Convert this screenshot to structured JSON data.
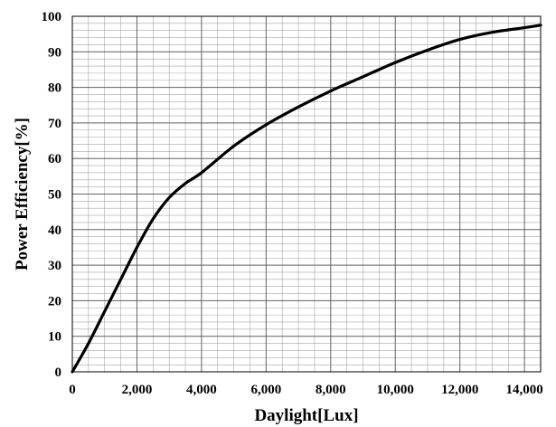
{
  "chart_data": {
    "type": "line",
    "xlabel": "Daylight[Lux]",
    "ylabel": "Power Efficiency[%]",
    "xlim": [
      0,
      14500
    ],
    "ylim": [
      0,
      100
    ],
    "x_ticks": [
      0,
      2000,
      4000,
      6000,
      8000,
      10000,
      12000,
      14000
    ],
    "x_tick_labels": [
      "0",
      "2,000",
      "4,000",
      "6,000",
      "8,000",
      "10,000",
      "12,000",
      "14,000"
    ],
    "y_ticks": [
      0,
      10,
      20,
      30,
      40,
      50,
      60,
      70,
      80,
      90,
      100
    ],
    "y_tick_labels": [
      "0",
      "10",
      "20",
      "30",
      "40",
      "50",
      "60",
      "70",
      "80",
      "90",
      "100"
    ],
    "grid": true,
    "legend": "none",
    "line_color": "#000000",
    "grid_color": "#a6a6a6",
    "series": [
      {
        "x": [
          0,
          500,
          1000,
          1500,
          2000,
          2500,
          3000,
          3500,
          4000,
          5000,
          6000,
          7000,
          8000,
          9000,
          10000,
          11000,
          12000,
          13000,
          14000,
          14500
        ],
        "values": [
          0,
          8,
          17,
          26,
          35,
          43,
          49,
          53,
          56,
          63.5,
          69.5,
          74.5,
          79,
          83,
          87,
          90.5,
          93.5,
          95.5,
          96.8,
          97.5
        ]
      }
    ]
  }
}
